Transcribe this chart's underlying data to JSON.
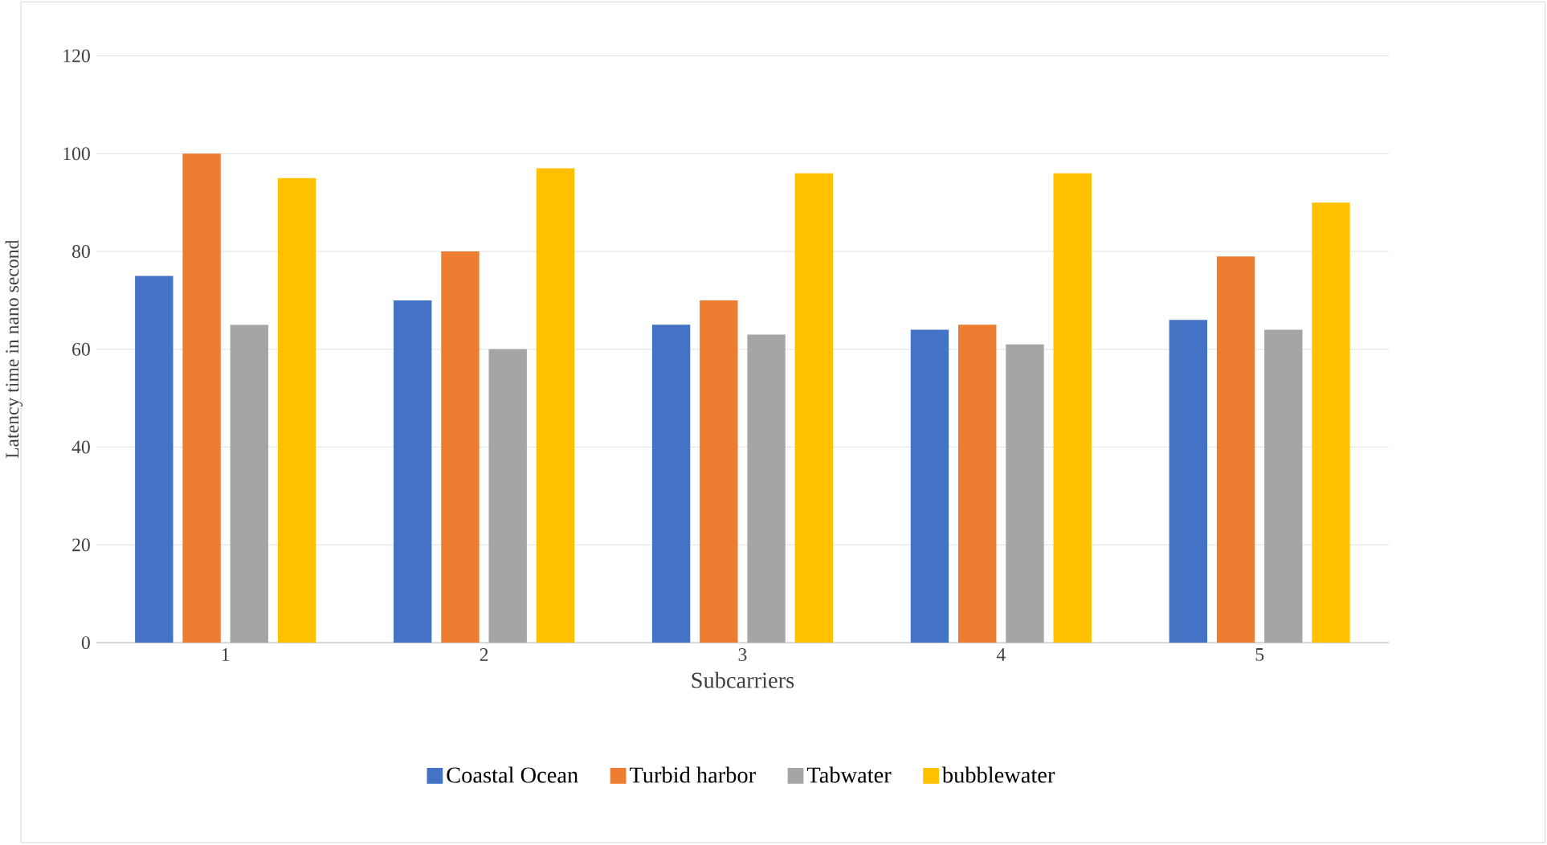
{
  "chart_data": {
    "type": "bar",
    "xlabel": "Subcarriers",
    "ylabel": "Latency time in nano second",
    "categories": [
      "1",
      "2",
      "3",
      "4",
      "5"
    ],
    "series": [
      {
        "name": "Coastal Ocean",
        "color": "#4472c4",
        "values": [
          75,
          70,
          65,
          64,
          66
        ]
      },
      {
        "name": "Turbid harbor",
        "color": "#ed7d31",
        "values": [
          100,
          80,
          70,
          65,
          79
        ]
      },
      {
        "name": "Tabwater",
        "color": "#a5a5a5",
        "values": [
          65,
          60,
          63,
          61,
          64
        ]
      },
      {
        "name": "bubblewater",
        "color": "#ffc000",
        "values": [
          95,
          97,
          96,
          96,
          90
        ]
      }
    ],
    "ylim": [
      0,
      120
    ],
    "yticks": [
      0,
      20,
      40,
      60,
      80,
      100,
      120
    ],
    "grid": "y",
    "legend": "bottom"
  }
}
